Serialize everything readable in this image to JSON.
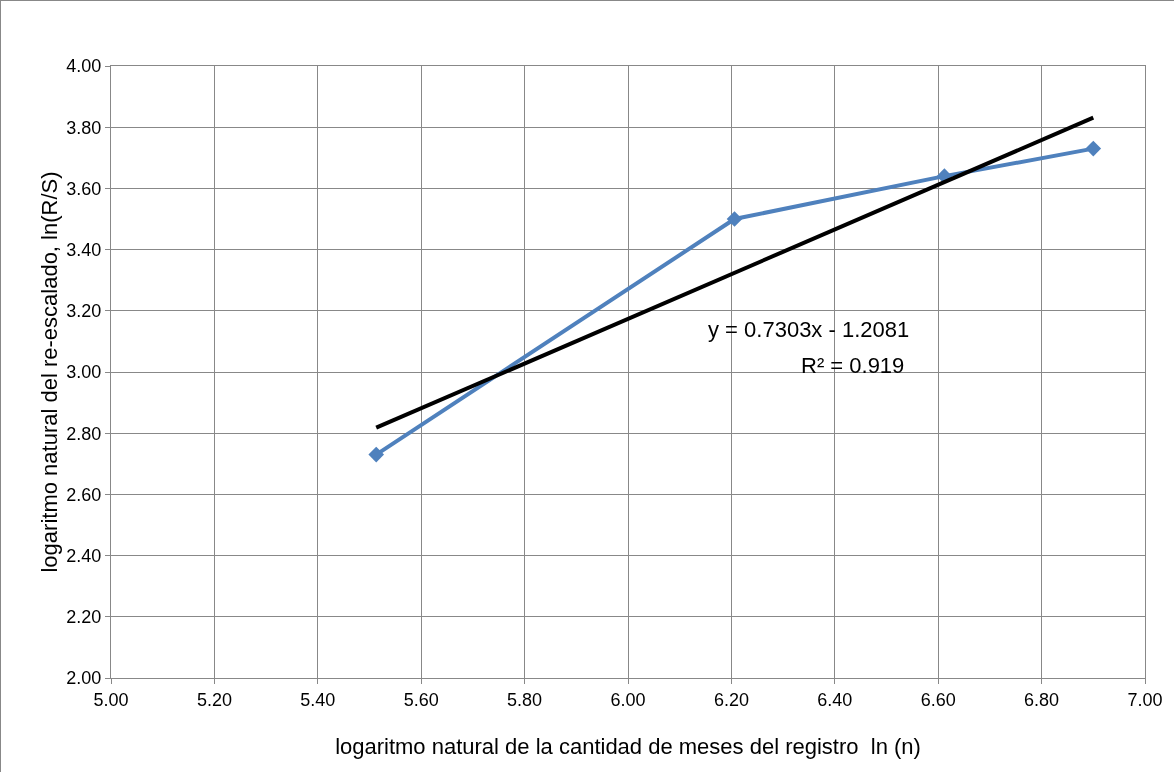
{
  "chart_data": {
    "type": "line",
    "xlabel": "logaritmo natural de la cantidad de meses del registro  ln (n)",
    "ylabel": "logaritmo natural del re-escalado, ln(R/S)",
    "annotations": [
      "y = 0.7303x - 1.2081",
      "R² = 0.919"
    ],
    "series": [
      {
        "color": "#4f81bd",
        "marker": "diamond",
        "x": [
          5.513,
          6.206,
          6.612,
          6.9
        ],
        "values": [
          2.73,
          3.5,
          3.64,
          3.73
        ]
      },
      {
        "color": "#000000",
        "marker": "none",
        "x": [
          5.513,
          6.9
        ],
        "values": [
          2.818,
          3.831
        ]
      }
    ],
    "xlim": [
      5,
      7
    ],
    "ylim": [
      2,
      4
    ],
    "xticks": [
      {
        "value": 5,
        "label": "5.00"
      },
      {
        "value": 5.2,
        "label": "5.20"
      },
      {
        "value": 5.4,
        "label": "5.40"
      },
      {
        "value": 5.6,
        "label": "5.60"
      },
      {
        "value": 5.8,
        "label": "5.80"
      },
      {
        "value": 6,
        "label": "6.00"
      },
      {
        "value": 6.2,
        "label": "6.20"
      },
      {
        "value": 6.4,
        "label": "6.40"
      },
      {
        "value": 6.6,
        "label": "6.60"
      },
      {
        "value": 6.8,
        "label": "6.80"
      },
      {
        "value": 7,
        "label": "7.00"
      }
    ],
    "yticks": [
      {
        "value": 2,
        "label": "2.00"
      },
      {
        "value": 2.2,
        "label": "2.20"
      },
      {
        "value": 2.4,
        "label": "2.40"
      },
      {
        "value": 2.6,
        "label": "2.60"
      },
      {
        "value": 2.8,
        "label": "2.80"
      },
      {
        "value": 3,
        "label": "3.00"
      },
      {
        "value": 3.2,
        "label": "3.20"
      },
      {
        "value": 3.4,
        "label": "3.40"
      },
      {
        "value": 3.6,
        "label": "3.60"
      },
      {
        "value": 3.8,
        "label": "3.80"
      },
      {
        "value": 4,
        "label": "4.00"
      }
    ],
    "grid": true
  }
}
